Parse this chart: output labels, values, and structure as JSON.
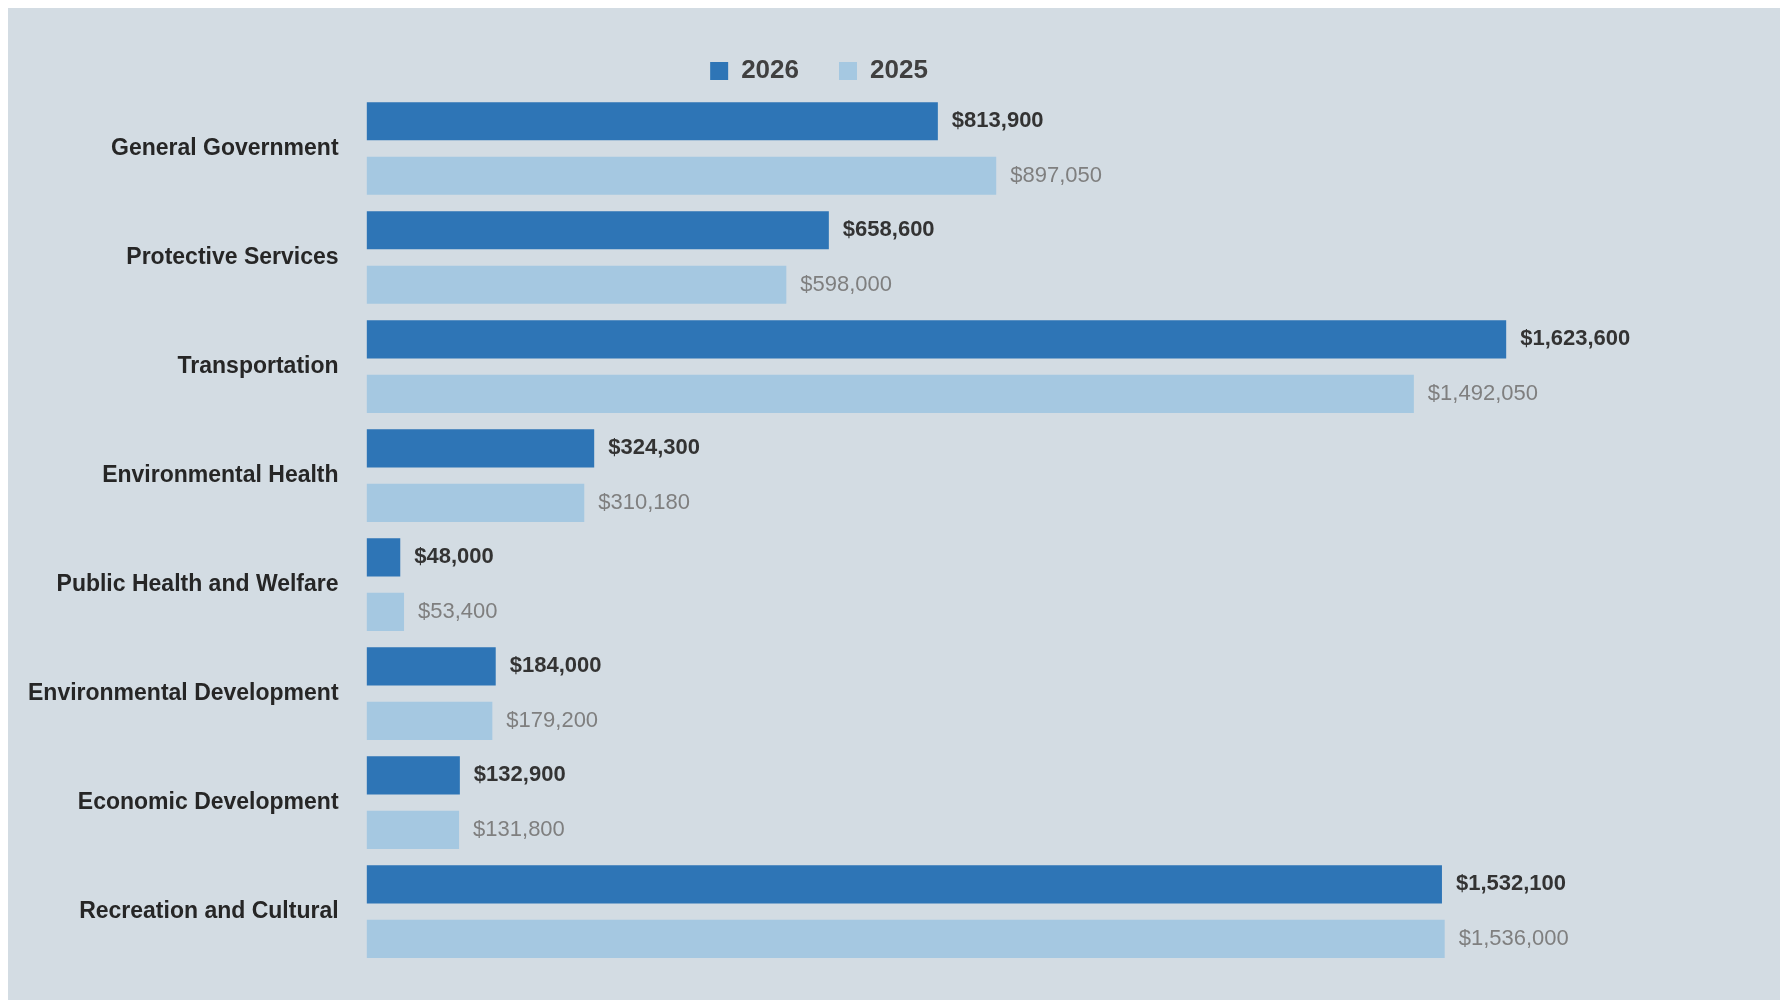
{
  "chart_data": {
    "type": "bar",
    "orientation": "horizontal",
    "categories": [
      "General Government",
      "Protective Services",
      "Transportation",
      "Environmental Health",
      "Public Health and Welfare",
      "Environmental Development",
      "Economic Development",
      "Recreation and Cultural"
    ],
    "series": [
      {
        "name": "2026",
        "color": "#2e75b6",
        "values": [
          813900,
          658600,
          1623600,
          324300,
          48000,
          184000,
          132900,
          1532100
        ],
        "value_labels": [
          "$813,900",
          "$658,600",
          "$1,623,600",
          "$324,300",
          "$48,000",
          "$184,000",
          "$132,900",
          "$1,532,100"
        ]
      },
      {
        "name": "2025",
        "color": "#a5c8e1",
        "values": [
          897050,
          598000,
          1492050,
          310180,
          53400,
          179200,
          131800,
          1536000
        ],
        "value_labels": [
          "$897,050",
          "$598,000",
          "$1,492,050",
          "$310,180",
          "$53,400",
          "$179,200",
          "$131,800",
          "$1,536,000"
        ]
      }
    ],
    "legend": "top"
  }
}
